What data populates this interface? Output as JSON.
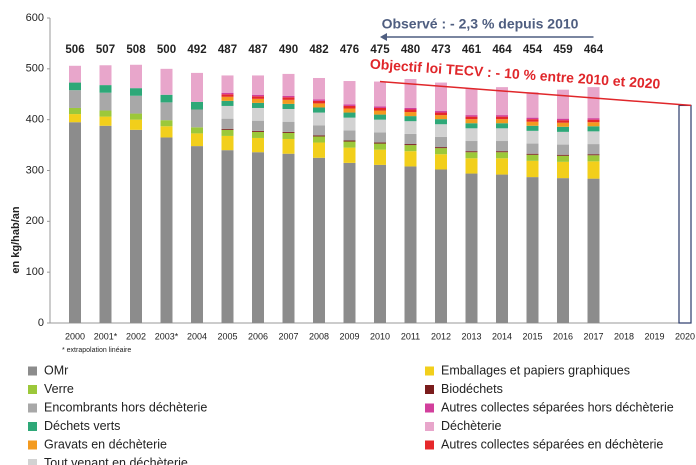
{
  "chart_data": {
    "type": "stacked_bar",
    "ylabel": "en kg/hab/an",
    "footnote": "* extrapolation linéaire",
    "annotation_observed": "Observé : - 2,3 % depuis 2010",
    "annotation_target": "Objectif loi TECV : - 10 % entre 2010 et 2020",
    "categories": [
      "2000",
      "2001*",
      "2002",
      "2003*",
      "2004",
      "2005",
      "2006",
      "2007",
      "2008",
      "2009",
      "2010",
      "2011",
      "2012",
      "2013",
      "2014",
      "2015",
      "2016",
      "2017",
      "2018",
      "2019",
      "2020"
    ],
    "totals": [
      506,
      507,
      508,
      500,
      492,
      487,
      487,
      490,
      482,
      476,
      475,
      480,
      473,
      461,
      464,
      454,
      459,
      464,
      null,
      null,
      null
    ],
    "target_value": 428,
    "ylim": [
      0,
      600
    ],
    "yticks": [
      0,
      100,
      200,
      300,
      400,
      500,
      600
    ],
    "series": [
      {
        "name": "OMr",
        "color": "#8c8c8c",
        "values": [
          395,
          388,
          380,
          365,
          348,
          340,
          336,
          333,
          325,
          315,
          311,
          308,
          302,
          294,
          292,
          287,
          285,
          284,
          null,
          null,
          null
        ]
      },
      {
        "name": "Emballages et papiers graphiques",
        "color": "#f2cf1b",
        "values": [
          16,
          18,
          20,
          22,
          25,
          28,
          28,
          29,
          30,
          30,
          30,
          30,
          30,
          30,
          32,
          32,
          32,
          34,
          null,
          null,
          null
        ]
      },
      {
        "name": "Verre",
        "color": "#9cc83a",
        "values": [
          12,
          12,
          12,
          12,
          12,
          12,
          12,
          12,
          12,
          12,
          12,
          12,
          12,
          12,
          12,
          12,
          12,
          12,
          null,
          null,
          null
        ]
      },
      {
        "name": "Biodéchets",
        "color": "#7a1c1c",
        "values": [
          0,
          0,
          0,
          0,
          0,
          2,
          2,
          2,
          2,
          2,
          2,
          2,
          2,
          2,
          2,
          2,
          2,
          2,
          null,
          null,
          null
        ]
      },
      {
        "name": "Encombrants hors déchèterie",
        "color": "#a8a8a8",
        "values": [
          35,
          35,
          35,
          35,
          35,
          20,
          20,
          20,
          20,
          20,
          20,
          20,
          20,
          20,
          20,
          20,
          20,
          20,
          null,
          null,
          null
        ]
      },
      {
        "name": "Autres collectes séparées hors déchèterie",
        "color": "#d23f9c",
        "values": [
          0,
          0,
          0,
          0,
          0,
          3,
          3,
          3,
          3,
          3,
          3,
          3,
          3,
          3,
          3,
          3,
          3,
          3,
          null,
          null,
          null
        ]
      },
      {
        "name": "Déchets verts",
        "color": "#2ea878",
        "values": [
          15,
          15,
          15,
          15,
          15,
          10,
          10,
          10,
          10,
          10,
          10,
          10,
          10,
          10,
          10,
          10,
          10,
          10,
          null,
          null,
          null
        ]
      },
      {
        "name": "Déchèterie",
        "color": "#e8a6cb",
        "values": [
          33,
          39,
          46,
          51,
          57,
          34,
          38,
          43,
          42,
          46,
          49,
          57,
          56,
          52,
          55,
          50,
          57,
          61,
          null,
          null,
          null
        ]
      },
      {
        "name": "Gravats en déchèterie",
        "color": "#f39a1f",
        "values": [
          0,
          0,
          0,
          0,
          0,
          8,
          8,
          8,
          8,
          8,
          8,
          8,
          8,
          8,
          8,
          8,
          8,
          8,
          null,
          null,
          null
        ]
      },
      {
        "name": "Autres collectes séparées en déchèterie",
        "color": "#e6282b",
        "values": [
          0,
          0,
          0,
          0,
          0,
          5,
          5,
          5,
          5,
          5,
          5,
          5,
          5,
          5,
          5,
          5,
          5,
          5,
          null,
          null,
          null
        ]
      },
      {
        "name": "Tout venant en déchèterie",
        "color": "#d2d2d2",
        "values": [
          0,
          0,
          0,
          0,
          0,
          25,
          25,
          25,
          25,
          25,
          25,
          25,
          25,
          25,
          25,
          25,
          25,
          25,
          null,
          null,
          null
        ]
      }
    ]
  }
}
